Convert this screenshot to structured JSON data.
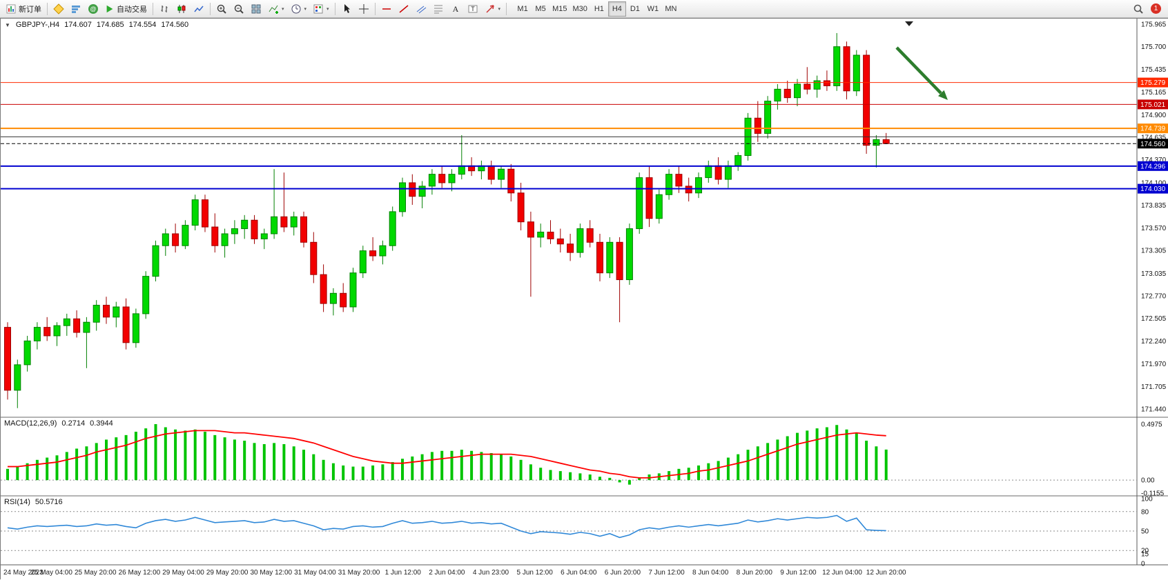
{
  "toolbar": {
    "new_order_label": "新订单",
    "auto_trading_label": "自动交易",
    "timeframes": [
      "M1",
      "M5",
      "M15",
      "M30",
      "H1",
      "H4",
      "D1",
      "W1",
      "MN"
    ],
    "active_timeframe": "H4",
    "notification_count": "1"
  },
  "chart": {
    "symbol_label": "GBPJPY-,H4",
    "ohlc": {
      "open": "174.607",
      "high": "174.685",
      "low": "174.554",
      "close": "174.560"
    },
    "colors": {
      "background": "#ffffff",
      "bull": "#00d900",
      "bull_edge": "#008000",
      "bear": "#f20000",
      "bear_edge": "#9e0000",
      "arrow": "#2d7d2d"
    }
  },
  "chart_data": {
    "type": "candlestick",
    "symbol": "GBPJPY-",
    "timeframe": "H4",
    "title": "GBPJPY-,H4 174.607 174.685 174.554 174.560",
    "price_axis_labels": [
      "175.965",
      "175.700",
      "175.435",
      "175.165",
      "174.900",
      "174.635",
      "174.370",
      "174.100",
      "173.835",
      "173.570",
      "173.305",
      "173.035",
      "172.770",
      "172.505",
      "172.240",
      "171.970",
      "171.705",
      "171.440"
    ],
    "levels": [
      {
        "price": 175.279,
        "color": "#ff2a00",
        "width": 1,
        "tag": "175.279"
      },
      {
        "price": 175.021,
        "color": "#c80000",
        "width": 1,
        "tag": "175.021"
      },
      {
        "price": 174.739,
        "color": "#ff8a00",
        "width": 2,
        "tag": "174.739"
      },
      {
        "price": 174.64,
        "color": "#333333",
        "width": 1,
        "tag": null
      },
      {
        "price": 174.296,
        "color": "#0000d0",
        "width": 2,
        "tag": "174.296"
      },
      {
        "price": 174.03,
        "color": "#0000d0",
        "width": 2,
        "tag": "174.030"
      }
    ],
    "current_price": {
      "value": 174.56,
      "tag": "174.560",
      "color": "#000000"
    },
    "candles": [
      [
        172.4,
        172.46,
        171.55,
        171.66
      ],
      [
        171.66,
        172.02,
        171.45,
        171.96
      ],
      [
        171.96,
        172.3,
        171.88,
        172.24
      ],
      [
        172.24,
        172.46,
        172.14,
        172.4
      ],
      [
        172.4,
        172.52,
        172.24,
        172.3
      ],
      [
        172.3,
        172.46,
        172.18,
        172.42
      ],
      [
        172.42,
        172.56,
        172.3,
        172.5
      ],
      [
        172.5,
        172.6,
        172.28,
        172.34
      ],
      [
        172.34,
        172.52,
        171.92,
        172.46
      ],
      [
        172.46,
        172.72,
        172.36,
        172.66
      ],
      [
        172.66,
        172.76,
        172.44,
        172.52
      ],
      [
        172.52,
        172.7,
        172.4,
        172.64
      ],
      [
        172.64,
        172.74,
        172.14,
        172.22
      ],
      [
        172.22,
        172.62,
        172.16,
        172.56
      ],
      [
        172.56,
        173.06,
        172.5,
        173.0
      ],
      [
        173.0,
        173.42,
        172.94,
        173.36
      ],
      [
        173.36,
        173.56,
        173.24,
        173.5
      ],
      [
        173.5,
        173.62,
        173.28,
        173.36
      ],
      [
        173.36,
        173.66,
        173.32,
        173.6
      ],
      [
        173.6,
        173.96,
        173.54,
        173.9
      ],
      [
        173.9,
        173.96,
        173.52,
        173.58
      ],
      [
        173.58,
        173.74,
        173.28,
        173.36
      ],
      [
        173.36,
        173.56,
        173.22,
        173.5
      ],
      [
        173.5,
        173.66,
        173.38,
        173.56
      ],
      [
        173.56,
        173.72,
        173.44,
        173.66
      ],
      [
        173.66,
        173.72,
        173.38,
        173.44
      ],
      [
        173.44,
        173.56,
        173.32,
        173.5
      ],
      [
        173.5,
        174.26,
        173.44,
        173.7
      ],
      [
        173.7,
        174.22,
        173.52,
        173.58
      ],
      [
        173.58,
        173.76,
        173.48,
        173.7
      ],
      [
        173.7,
        173.76,
        173.34,
        173.4
      ],
      [
        173.4,
        173.52,
        172.92,
        173.02
      ],
      [
        173.02,
        173.14,
        172.58,
        172.68
      ],
      [
        172.68,
        172.86,
        172.54,
        172.8
      ],
      [
        172.8,
        172.92,
        172.58,
        172.64
      ],
      [
        172.64,
        173.1,
        172.58,
        173.04
      ],
      [
        173.04,
        173.36,
        172.98,
        173.3
      ],
      [
        173.3,
        173.46,
        173.18,
        173.24
      ],
      [
        173.24,
        173.42,
        173.14,
        173.36
      ],
      [
        173.36,
        173.82,
        173.3,
        173.76
      ],
      [
        173.76,
        174.16,
        173.7,
        174.1
      ],
      [
        174.1,
        174.2,
        173.84,
        173.94
      ],
      [
        173.94,
        174.12,
        173.8,
        174.06
      ],
      [
        174.06,
        174.26,
        173.96,
        174.2
      ],
      [
        174.2,
        174.3,
        174.04,
        174.1
      ],
      [
        174.1,
        174.26,
        174.0,
        174.2
      ],
      [
        174.2,
        174.66,
        174.14,
        174.3
      ],
      [
        174.3,
        174.4,
        174.18,
        174.24
      ],
      [
        174.24,
        174.36,
        174.14,
        174.3
      ],
      [
        174.3,
        174.36,
        174.08,
        174.14
      ],
      [
        174.14,
        174.3,
        174.04,
        174.26
      ],
      [
        174.26,
        174.32,
        173.88,
        173.98
      ],
      [
        173.98,
        174.1,
        173.54,
        173.64
      ],
      [
        173.64,
        173.76,
        172.76,
        173.46
      ],
      [
        173.46,
        173.62,
        173.34,
        173.52
      ],
      [
        173.52,
        173.66,
        173.38,
        173.44
      ],
      [
        173.44,
        173.56,
        173.28,
        173.38
      ],
      [
        173.38,
        173.5,
        173.18,
        173.28
      ],
      [
        173.28,
        173.62,
        173.22,
        173.56
      ],
      [
        173.56,
        173.66,
        173.34,
        173.4
      ],
      [
        173.4,
        173.5,
        172.94,
        173.04
      ],
      [
        173.04,
        173.46,
        172.98,
        173.4
      ],
      [
        173.4,
        173.46,
        172.46,
        172.96
      ],
      [
        172.96,
        173.62,
        172.9,
        173.56
      ],
      [
        173.56,
        174.22,
        173.5,
        174.16
      ],
      [
        174.16,
        174.3,
        173.58,
        173.68
      ],
      [
        173.68,
        174.02,
        173.62,
        173.96
      ],
      [
        173.96,
        174.26,
        173.9,
        174.2
      ],
      [
        174.2,
        174.3,
        173.98,
        174.06
      ],
      [
        174.06,
        174.16,
        173.88,
        173.98
      ],
      [
        173.98,
        174.22,
        173.92,
        174.16
      ],
      [
        174.16,
        174.36,
        174.1,
        174.3
      ],
      [
        174.3,
        174.4,
        174.08,
        174.14
      ],
      [
        174.14,
        174.36,
        174.04,
        174.3
      ],
      [
        174.3,
        174.46,
        174.24,
        174.42
      ],
      [
        174.42,
        174.92,
        174.36,
        174.86
      ],
      [
        174.86,
        175.06,
        174.58,
        174.68
      ],
      [
        174.68,
        175.12,
        174.62,
        175.06
      ],
      [
        175.06,
        175.26,
        174.96,
        175.2
      ],
      [
        175.2,
        175.3,
        175.04,
        175.1
      ],
      [
        175.1,
        175.32,
        175.0,
        175.26
      ],
      [
        175.26,
        175.46,
        175.14,
        175.2
      ],
      [
        175.2,
        175.36,
        175.1,
        175.3
      ],
      [
        175.3,
        175.42,
        175.18,
        175.24
      ],
      [
        175.24,
        175.86,
        175.18,
        175.7
      ],
      [
        175.7,
        175.76,
        175.08,
        175.18
      ],
      [
        175.18,
        175.66,
        175.12,
        175.6
      ],
      [
        175.6,
        175.66,
        174.44,
        174.54
      ],
      [
        174.54,
        174.66,
        174.28,
        174.607
      ],
      [
        174.607,
        174.685,
        174.554,
        174.56
      ]
    ],
    "macd": {
      "label": "MACD(12,26,9)",
      "value_main": "0.2714",
      "value_signal": "0.3944",
      "axis_labels": [
        "0.4975",
        "0.00",
        "-0.1155"
      ],
      "max": 0.4975,
      "min": -0.1155,
      "histogram_color": "#00c400",
      "signal_color": "#ff0000",
      "histogram": [
        0.1,
        0.12,
        0.15,
        0.18,
        0.2,
        0.22,
        0.25,
        0.28,
        0.3,
        0.33,
        0.36,
        0.38,
        0.4,
        0.43,
        0.46,
        0.4975,
        0.47,
        0.45,
        0.44,
        0.45,
        0.43,
        0.4,
        0.38,
        0.36,
        0.35,
        0.33,
        0.32,
        0.33,
        0.32,
        0.3,
        0.27,
        0.23,
        0.18,
        0.15,
        0.13,
        0.12,
        0.12,
        0.13,
        0.14,
        0.16,
        0.19,
        0.21,
        0.23,
        0.25,
        0.26,
        0.26,
        0.27,
        0.26,
        0.25,
        0.24,
        0.23,
        0.21,
        0.18,
        0.14,
        0.11,
        0.09,
        0.08,
        0.07,
        0.06,
        0.05,
        0.03,
        0.02,
        -0.02,
        -0.04,
        0.02,
        0.05,
        0.06,
        0.08,
        0.1,
        0.11,
        0.13,
        0.15,
        0.17,
        0.2,
        0.23,
        0.27,
        0.3,
        0.33,
        0.36,
        0.39,
        0.42,
        0.44,
        0.46,
        0.47,
        0.49,
        0.45,
        0.42,
        0.35,
        0.3,
        0.2714
      ],
      "signal": [
        0.12,
        0.12,
        0.13,
        0.14,
        0.15,
        0.16,
        0.18,
        0.2,
        0.22,
        0.25,
        0.27,
        0.29,
        0.31,
        0.34,
        0.37,
        0.39,
        0.41,
        0.42,
        0.43,
        0.44,
        0.44,
        0.44,
        0.43,
        0.42,
        0.42,
        0.41,
        0.4,
        0.39,
        0.38,
        0.37,
        0.35,
        0.33,
        0.3,
        0.27,
        0.24,
        0.21,
        0.19,
        0.17,
        0.16,
        0.15,
        0.15,
        0.16,
        0.17,
        0.18,
        0.19,
        0.2,
        0.21,
        0.22,
        0.23,
        0.23,
        0.23,
        0.23,
        0.22,
        0.21,
        0.19,
        0.17,
        0.15,
        0.13,
        0.11,
        0.09,
        0.08,
        0.06,
        0.05,
        0.03,
        0.02,
        0.02,
        0.03,
        0.04,
        0.05,
        0.06,
        0.08,
        0.09,
        0.11,
        0.13,
        0.15,
        0.17,
        0.2,
        0.23,
        0.26,
        0.29,
        0.32,
        0.34,
        0.36,
        0.38,
        0.4,
        0.41,
        0.42,
        0.41,
        0.4,
        0.3944
      ]
    },
    "rsi": {
      "label": "RSI(14)",
      "value": "50.5716",
      "axis_labels": [
        "100",
        "80",
        "50",
        "20",
        "15",
        "0"
      ],
      "levels": [
        80,
        50,
        20
      ],
      "line_color": "#2f88d8",
      "values": [
        55,
        53,
        56,
        58,
        57,
        58,
        59,
        57,
        58,
        61,
        59,
        60,
        57,
        55,
        62,
        66,
        68,
        65,
        67,
        71,
        67,
        63,
        64,
        65,
        66,
        63,
        64,
        68,
        65,
        66,
        62,
        58,
        52,
        54,
        53,
        57,
        58,
        56,
        57,
        62,
        66,
        62,
        63,
        65,
        62,
        63,
        65,
        62,
        63,
        61,
        62,
        56,
        50,
        46,
        49,
        48,
        47,
        45,
        48,
        46,
        42,
        46,
        40,
        44,
        52,
        55,
        53,
        56,
        58,
        56,
        58,
        60,
        58,
        60,
        62,
        67,
        64,
        66,
        69,
        67,
        69,
        71,
        70,
        71,
        74,
        65,
        70,
        52,
        51,
        50.5716
      ]
    },
    "date_axis_labels": [
      "24 May 2023",
      "25 May 04:00",
      "25 May 20:00",
      "26 May 12:00",
      "29 May 04:00",
      "29 May 20:00",
      "30 May 12:00",
      "31 May 04:00",
      "31 May 20:00",
      "1 Jun 12:00",
      "2 Jun 04:00",
      "4 Jun 23:00",
      "5 Jun 12:00",
      "6 Jun 04:00",
      "6 Jun 20:00",
      "7 Jun 12:00",
      "8 Jun 04:00",
      "8 Jun 20:00",
      "9 Jun 12:00",
      "12 Jun 04:00",
      "12 Jun 20:00"
    ]
  }
}
